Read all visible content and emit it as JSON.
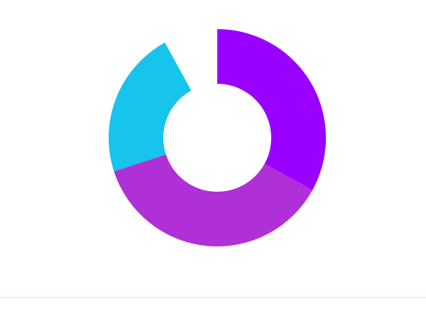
{
  "chart_data": {
    "type": "donut",
    "values": [
      33,
      37,
      22,
      8
    ],
    "colors": [
      "#9900ff",
      "#b030d8",
      "#16c4ec",
      "#ffffff"
    ]
  }
}
